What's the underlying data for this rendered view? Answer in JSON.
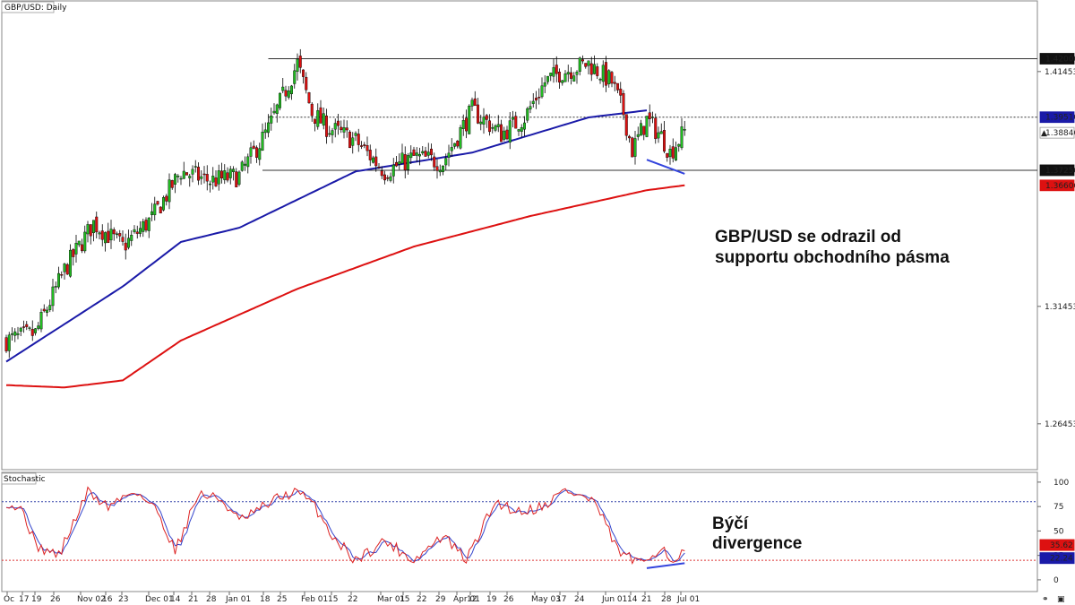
{
  "chart_data": [
    {
      "type": "candlestick",
      "title": "GBP/USD: Daily",
      "ylim": [
        1.245,
        1.445
      ],
      "y_ticks": [
        "1.41453",
        "1.31453",
        "1.26453"
      ],
      "level_labels": [
        {
          "label": "1.42000",
          "value": 1.42,
          "style": "dark"
        },
        {
          "label": "1.39510",
          "value": 1.3951,
          "style": "blue"
        },
        {
          "label": "1.38846",
          "value": 1.38846,
          "style": "current"
        },
        {
          "label": "1.37250",
          "value": 1.3725,
          "style": "dark"
        },
        {
          "label": "1.36606",
          "value": 1.36606,
          "style": "red"
        }
      ],
      "x_ticks": [
        "Oc",
        "17",
        "19",
        "26",
        "Nov 02",
        "16",
        "23",
        "Dec 01",
        "14",
        "21",
        "28",
        "Jan 01",
        "18",
        "25",
        "Feb 01",
        "15",
        "22",
        "Mar 01",
        "15",
        "22",
        "29",
        "Apr 01",
        "12",
        "19",
        "26",
        "May 03",
        "17",
        "24",
        "Jun 01",
        "14",
        "21",
        "28",
        "Jul 01"
      ],
      "key_points": [
        [
          0,
          1.3
        ],
        [
          10,
          1.303
        ],
        [
          20,
          1.33
        ],
        [
          30,
          1.35
        ],
        [
          40,
          1.34
        ],
        [
          50,
          1.352
        ],
        [
          60,
          1.372
        ],
        [
          70,
          1.368
        ],
        [
          80,
          1.37
        ],
        [
          90,
          1.39
        ],
        [
          100,
          1.418
        ],
        [
          105,
          1.397
        ],
        [
          110,
          1.391
        ],
        [
          120,
          1.385
        ],
        [
          130,
          1.372
        ],
        [
          140,
          1.378
        ],
        [
          150,
          1.376
        ],
        [
          160,
          1.398
        ],
        [
          170,
          1.388
        ],
        [
          178,
          1.395
        ],
        [
          185,
          1.41
        ],
        [
          190,
          1.414
        ],
        [
          200,
          1.418
        ],
        [
          208,
          1.41
        ],
        [
          212,
          1.397
        ],
        [
          215,
          1.381
        ],
        [
          220,
          1.394
        ],
        [
          225,
          1.387
        ],
        [
          228,
          1.38
        ],
        [
          233,
          1.389
        ]
      ],
      "series": [
        {
          "name": "",
          "color": "#1a1aa8",
          "points": [
            [
              0,
              1.291
            ],
            [
              40,
              1.323
            ],
            [
              60,
              1.342
            ],
            [
              80,
              1.348
            ],
            [
              120,
              1.372
            ],
            [
              160,
              1.38
            ],
            [
              200,
              1.395
            ],
            [
              220,
              1.398
            ]
          ]
        },
        {
          "name": "",
          "color": "#dd1111",
          "points": [
            [
              0,
              1.281
            ],
            [
              20,
              1.28
            ],
            [
              40,
              1.283
            ],
            [
              60,
              1.3
            ],
            [
              100,
              1.322
            ],
            [
              140,
              1.34
            ],
            [
              180,
              1.353
            ],
            [
              220,
              1.364
            ],
            [
              233,
              1.3661
            ]
          ]
        }
      ],
      "horizontal_lines": [
        {
          "value": 1.42,
          "x_start": 90,
          "style": "solid"
        },
        {
          "value": 1.3951,
          "x_start": 90,
          "style": "dotted"
        },
        {
          "value": 1.3725,
          "x_start": 88,
          "style": "solid"
        }
      ],
      "divergence_line": [
        [
          220,
          1.377
        ],
        [
          233,
          1.371
        ]
      ],
      "annotation": [
        "GBP/USD se odrazil od",
        "supportu obchodního pásma"
      ]
    },
    {
      "type": "line",
      "title": "Stochastic",
      "ylim": [
        -12,
        110
      ],
      "y_ticks": [
        "100",
        "75",
        "50",
        "25",
        "0"
      ],
      "levels": [
        80,
        20
      ],
      "value_labels": [
        {
          "label": "35.62",
          "value": 35.62,
          "color": "#dd1111"
        },
        {
          "label": "22.24",
          "value": 22.24,
          "color": "#1a1aa8"
        }
      ],
      "key_points": [
        [
          0,
          80
        ],
        [
          6,
          70
        ],
        [
          10,
          35
        ],
        [
          18,
          25
        ],
        [
          28,
          90
        ],
        [
          35,
          75
        ],
        [
          44,
          92
        ],
        [
          52,
          70
        ],
        [
          58,
          30
        ],
        [
          66,
          88
        ],
        [
          74,
          82
        ],
        [
          80,
          60
        ],
        [
          86,
          70
        ],
        [
          94,
          85
        ],
        [
          100,
          90
        ],
        [
          106,
          75
        ],
        [
          112,
          45
        ],
        [
          120,
          20
        ],
        [
          130,
          40
        ],
        [
          140,
          20
        ],
        [
          150,
          45
        ],
        [
          158,
          20
        ],
        [
          168,
          80
        ],
        [
          176,
          70
        ],
        [
          184,
          75
        ],
        [
          192,
          92
        ],
        [
          202,
          80
        ],
        [
          210,
          30
        ],
        [
          218,
          15
        ],
        [
          225,
          35
        ],
        [
          230,
          15
        ],
        [
          233,
          32
        ]
      ],
      "divergence_line": [
        [
          220,
          12
        ],
        [
          233,
          17
        ]
      ],
      "annotation": [
        "Býčí",
        "divergence"
      ]
    }
  ]
}
